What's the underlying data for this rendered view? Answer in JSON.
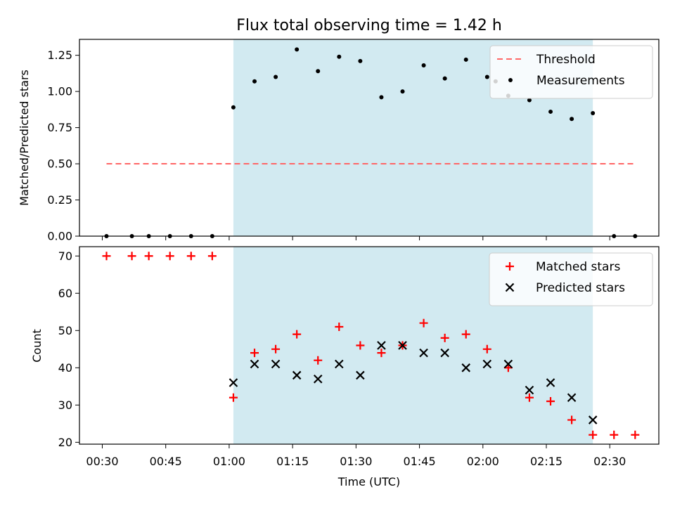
{
  "chart_data": [
    {
      "type": "scatter",
      "title": "Flux total observing time = 1.42 h",
      "ylabel": "Matched/Predicted stars",
      "xlabel": "",
      "ylim": [
        0,
        1.36
      ],
      "yticks": [
        "0.00",
        "0.25",
        "0.50",
        "0.75",
        "1.00",
        "1.25"
      ],
      "grid": false,
      "legend_position": "top-right",
      "shaded_span": {
        "start": "01:01",
        "end": "02:26",
        "color": "#add8e6"
      },
      "threshold": {
        "name": "Threshold",
        "value": 0.5,
        "start": "00:31",
        "end": "02:36",
        "color": "#ff6666"
      },
      "series": [
        {
          "name": "Measurements",
          "color": "#000000",
          "marker": "dot",
          "points": [
            {
              "x": "00:31",
              "y": 0.0
            },
            {
              "x": "00:37",
              "y": 0.0
            },
            {
              "x": "00:41",
              "y": 0.0
            },
            {
              "x": "00:46",
              "y": 0.0
            },
            {
              "x": "00:51",
              "y": 0.0
            },
            {
              "x": "00:56",
              "y": 0.0
            },
            {
              "x": "01:01",
              "y": 0.89
            },
            {
              "x": "01:06",
              "y": 1.07
            },
            {
              "x": "01:11",
              "y": 1.1
            },
            {
              "x": "01:16",
              "y": 1.29
            },
            {
              "x": "01:21",
              "y": 1.14
            },
            {
              "x": "01:26",
              "y": 1.24
            },
            {
              "x": "01:31",
              "y": 1.21
            },
            {
              "x": "01:36",
              "y": 0.96
            },
            {
              "x": "01:41",
              "y": 1.0
            },
            {
              "x": "01:46",
              "y": 1.18
            },
            {
              "x": "01:51",
              "y": 1.09
            },
            {
              "x": "01:56",
              "y": 1.22
            },
            {
              "x": "02:01",
              "y": 1.1
            },
            {
              "x": "02:03",
              "y": 1.07
            },
            {
              "x": "02:06",
              "y": 0.97
            },
            {
              "x": "02:11",
              "y": 0.94
            },
            {
              "x": "02:16",
              "y": 0.86
            },
            {
              "x": "02:21",
              "y": 0.81
            },
            {
              "x": "02:26",
              "y": 0.85
            },
            {
              "x": "02:31",
              "y": 0.0
            },
            {
              "x": "02:36",
              "y": 0.0
            }
          ]
        }
      ]
    },
    {
      "type": "scatter",
      "title": "",
      "ylabel": "Count",
      "xlabel": "Time (UTC)",
      "ylim": [
        19.5,
        72.5
      ],
      "yticks": [
        "20",
        "30",
        "40",
        "50",
        "60",
        "70"
      ],
      "xticks": [
        "00:30",
        "00:45",
        "01:00",
        "01:15",
        "01:30",
        "01:45",
        "02:00",
        "02:15",
        "02:30"
      ],
      "grid": false,
      "legend_position": "top-right",
      "shaded_span": {
        "start": "01:01",
        "end": "02:26",
        "color": "#add8e6"
      },
      "series": [
        {
          "name": "Matched stars",
          "color": "#ff0000",
          "marker": "plus",
          "points": [
            {
              "x": "00:31",
              "y": 70
            },
            {
              "x": "00:37",
              "y": 70
            },
            {
              "x": "00:41",
              "y": 70
            },
            {
              "x": "00:46",
              "y": 70
            },
            {
              "x": "00:51",
              "y": 70
            },
            {
              "x": "00:56",
              "y": 70
            },
            {
              "x": "01:01",
              "y": 32
            },
            {
              "x": "01:06",
              "y": 44
            },
            {
              "x": "01:11",
              "y": 45
            },
            {
              "x": "01:16",
              "y": 49
            },
            {
              "x": "01:21",
              "y": 42
            },
            {
              "x": "01:26",
              "y": 51
            },
            {
              "x": "01:31",
              "y": 46
            },
            {
              "x": "01:36",
              "y": 44
            },
            {
              "x": "01:41",
              "y": 46
            },
            {
              "x": "01:46",
              "y": 52
            },
            {
              "x": "01:51",
              "y": 48
            },
            {
              "x": "01:56",
              "y": 49
            },
            {
              "x": "02:01",
              "y": 45
            },
            {
              "x": "02:06",
              "y": 40
            },
            {
              "x": "02:11",
              "y": 32
            },
            {
              "x": "02:16",
              "y": 31
            },
            {
              "x": "02:21",
              "y": 26
            },
            {
              "x": "02:26",
              "y": 22
            },
            {
              "x": "02:31",
              "y": 22
            },
            {
              "x": "02:36",
              "y": 22
            }
          ]
        },
        {
          "name": "Predicted stars",
          "color": "#000000",
          "marker": "x",
          "points": [
            {
              "x": "01:01",
              "y": 36
            },
            {
              "x": "01:06",
              "y": 41
            },
            {
              "x": "01:11",
              "y": 41
            },
            {
              "x": "01:16",
              "y": 38
            },
            {
              "x": "01:21",
              "y": 37
            },
            {
              "x": "01:26",
              "y": 41
            },
            {
              "x": "01:31",
              "y": 38
            },
            {
              "x": "01:36",
              "y": 46
            },
            {
              "x": "01:41",
              "y": 46
            },
            {
              "x": "01:46",
              "y": 44
            },
            {
              "x": "01:51",
              "y": 44
            },
            {
              "x": "01:56",
              "y": 40
            },
            {
              "x": "02:01",
              "y": 41
            },
            {
              "x": "02:06",
              "y": 41
            },
            {
              "x": "02:11",
              "y": 34
            },
            {
              "x": "02:16",
              "y": 36
            },
            {
              "x": "02:21",
              "y": 32
            },
            {
              "x": "02:26",
              "y": 26
            }
          ]
        }
      ]
    }
  ]
}
